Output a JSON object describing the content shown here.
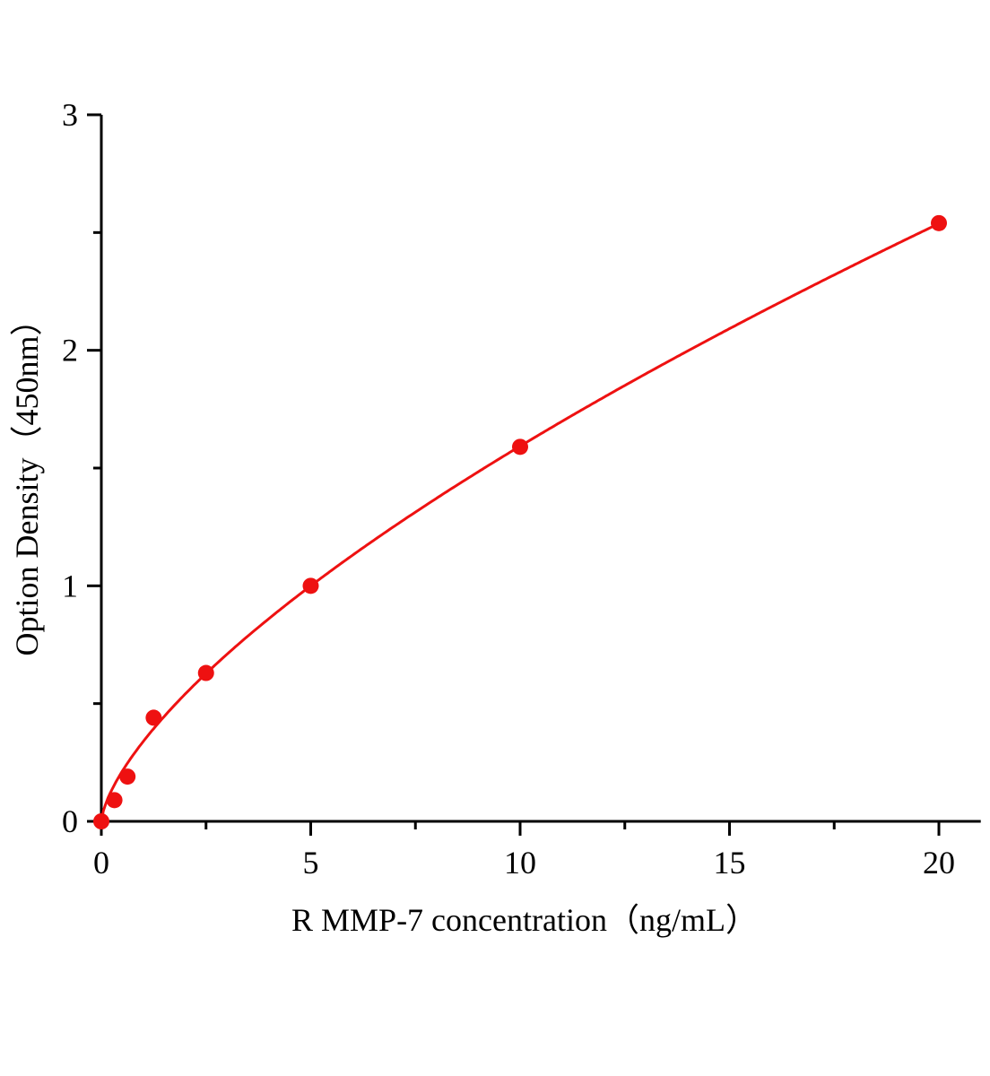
{
  "chart_data": {
    "type": "scatter",
    "title": "",
    "xlabel": "R MMP-7  concentration（ng/mL）",
    "ylabel": "Option Density（450nm）",
    "xlim": [
      0,
      21
    ],
    "ylim": [
      0,
      3
    ],
    "xticks": [
      0,
      5,
      10,
      15,
      20
    ],
    "xtick_labels": [
      "0",
      "5",
      "10",
      "15",
      "20"
    ],
    "yticks": [
      0,
      1,
      2,
      3
    ],
    "ytick_labels": [
      "0",
      "1",
      "2",
      "3"
    ],
    "grid": false,
    "legend": "none",
    "series": [
      {
        "x": [
          0,
          0.3125,
          0.625,
          1.25,
          2.5,
          5,
          10,
          20
        ],
        "y": [
          0,
          0.09,
          0.19,
          0.44,
          0.63,
          1.0,
          1.59,
          2.54
        ],
        "color": "#ee1111"
      }
    ],
    "fit_curve": {
      "type": "power",
      "a": 0.339,
      "b": 0.672,
      "color": "#ee1111"
    }
  }
}
